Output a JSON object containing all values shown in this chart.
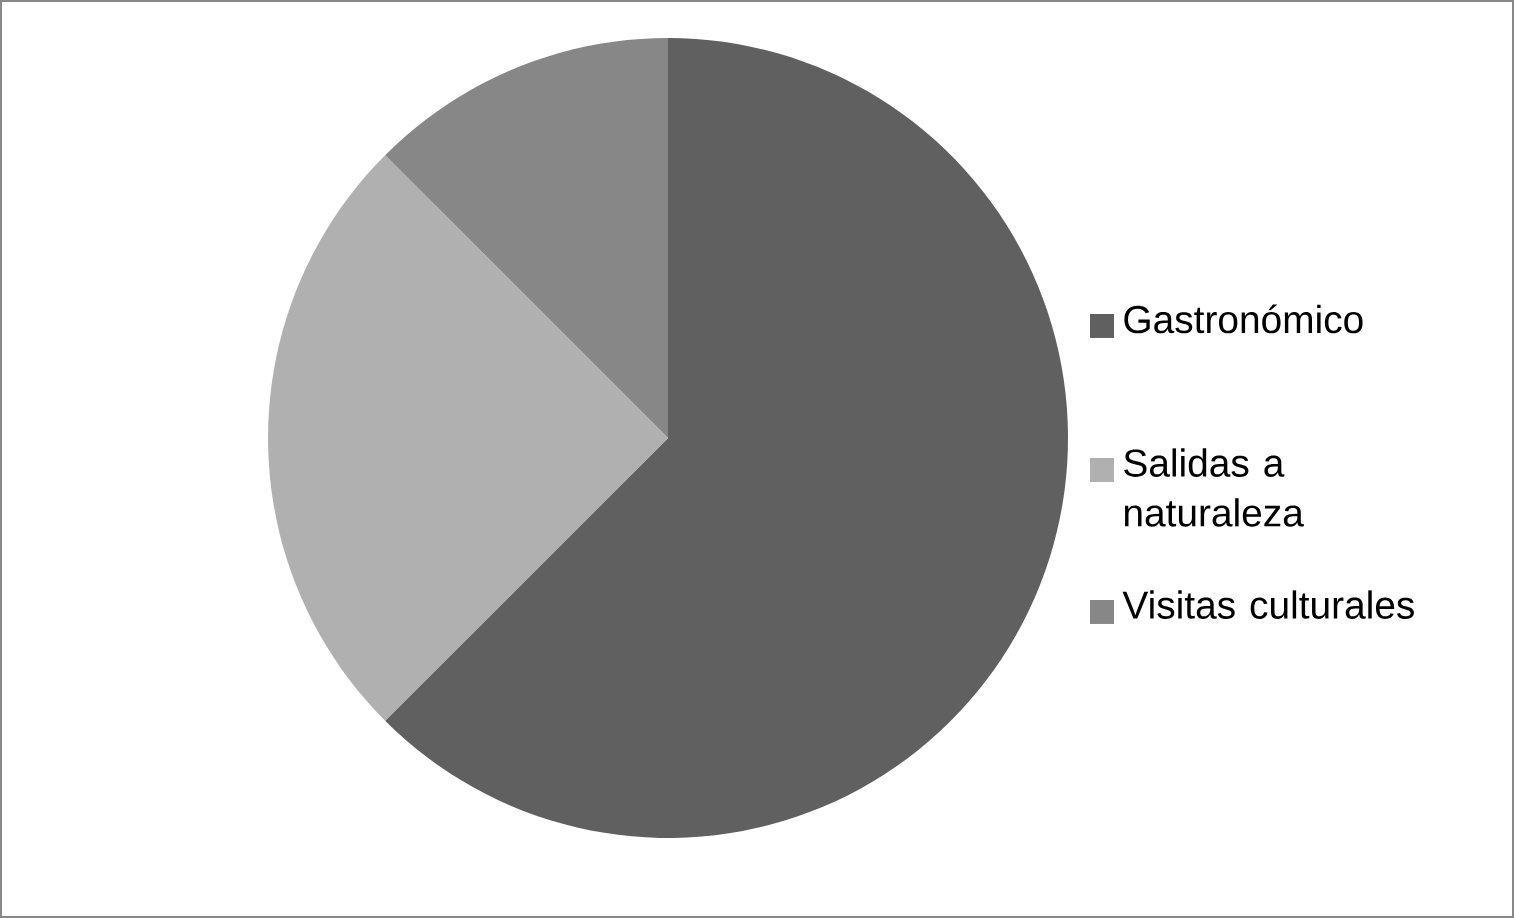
{
  "chart_data": {
    "type": "pie",
    "categories": [
      "Gastronómico",
      "Salidas a naturaleza",
      "Visitas culturales"
    ],
    "values": [
      62.5,
      25,
      12.5
    ],
    "colors": [
      "#606060",
      "#b0b0b0",
      "#878787"
    ],
    "legend": "right"
  }
}
